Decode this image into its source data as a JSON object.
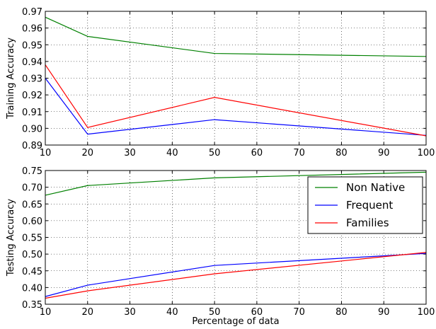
{
  "chart_data": [
    {
      "type": "line",
      "title": "",
      "xlabel": "",
      "ylabel": "Training Accuracy",
      "xlim": [
        10,
        100
      ],
      "ylim": [
        0.89,
        0.97
      ],
      "grid": true,
      "xticks": [
        "10",
        "20",
        "30",
        "40",
        "50",
        "60",
        "70",
        "80",
        "90",
        "100"
      ],
      "yticks": [
        "0.89",
        "0.90",
        "0.91",
        "0.92",
        "0.93",
        "0.94",
        "0.95",
        "0.96",
        "0.97"
      ],
      "x": [
        10,
        20,
        50,
        100
      ],
      "series": [
        {
          "name": "Non Native",
          "color": "#008000",
          "values": [
            0.9665,
            0.955,
            0.9448,
            0.943
          ]
        },
        {
          "name": "Frequent",
          "color": "#0000ff",
          "values": [
            0.93,
            0.8965,
            0.9052,
            0.8958
          ]
        },
        {
          "name": "Families",
          "color": "#ff0000",
          "values": [
            0.938,
            0.9005,
            0.9185,
            0.8955
          ]
        }
      ]
    },
    {
      "type": "line",
      "title": "",
      "xlabel": "Percentage of data",
      "ylabel": "Testing Accuracy",
      "xlim": [
        10,
        100
      ],
      "ylim": [
        0.35,
        0.75
      ],
      "grid": true,
      "xticks": [
        "10",
        "20",
        "30",
        "40",
        "50",
        "60",
        "70",
        "80",
        "90",
        "100"
      ],
      "yticks": [
        "0.35",
        "0.40",
        "0.45",
        "0.50",
        "0.55",
        "0.60",
        "0.65",
        "0.70",
        "0.75"
      ],
      "legend": "upper-right",
      "x": [
        10,
        20,
        50,
        100
      ],
      "series": [
        {
          "name": "Non Native",
          "color": "#008000",
          "values": [
            0.676,
            0.705,
            0.728,
            0.745
          ]
        },
        {
          "name": "Frequent",
          "color": "#0000ff",
          "values": [
            0.373,
            0.407,
            0.466,
            0.502
          ]
        },
        {
          "name": "Families",
          "color": "#ff0000",
          "values": [
            0.368,
            0.39,
            0.441,
            0.505
          ]
        }
      ]
    }
  ]
}
